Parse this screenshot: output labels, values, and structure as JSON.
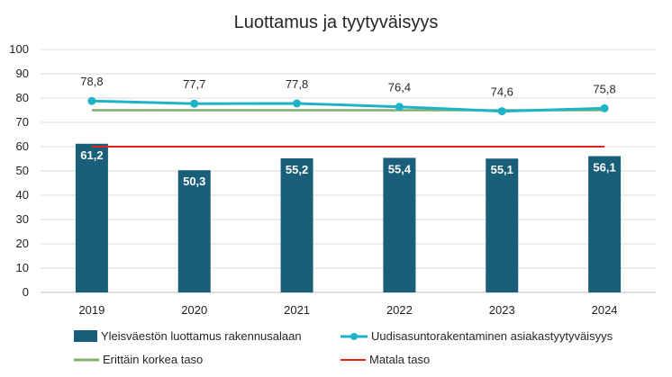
{
  "chart_data": {
    "type": "bar",
    "title": "Luottamus ja tyytyväisyys",
    "categories": [
      "2019",
      "2020",
      "2021",
      "2022",
      "2023",
      "2024"
    ],
    "ylim": [
      0,
      100
    ],
    "yticks": [
      "0",
      "10",
      "20",
      "30",
      "40",
      "50",
      "60",
      "70",
      "80",
      "90",
      "100"
    ],
    "grid": true,
    "legend_position": "bottom",
    "series": [
      {
        "name": "Yleisväestön luottamus rakennusalaan",
        "kind": "bar",
        "color": "#1a5f7a",
        "values": [
          61.2,
          50.3,
          55.2,
          55.4,
          55.1,
          56.1
        ],
        "labels": [
          "61,2",
          "50,3",
          "55,2",
          "55,4",
          "55,1",
          "56,1"
        ]
      },
      {
        "name": "Uudisasuntorakentaminen asiakastyytyväisyys",
        "kind": "line-markers",
        "color": "#1fb3c8",
        "values": [
          78.8,
          77.7,
          77.8,
          76.4,
          74.6,
          75.8
        ],
        "labels": [
          "78,8",
          "77,7",
          "77,8",
          "76,4",
          "74,6",
          "75,8"
        ]
      },
      {
        "name": "Erittäin korkea taso",
        "kind": "line",
        "color": "#7fb06a",
        "values": [
          75,
          75,
          75,
          75,
          75,
          75
        ]
      },
      {
        "name": "Matala taso",
        "kind": "line",
        "color": "#e2231a",
        "values": [
          60,
          60,
          60,
          60,
          60,
          60
        ]
      }
    ]
  }
}
